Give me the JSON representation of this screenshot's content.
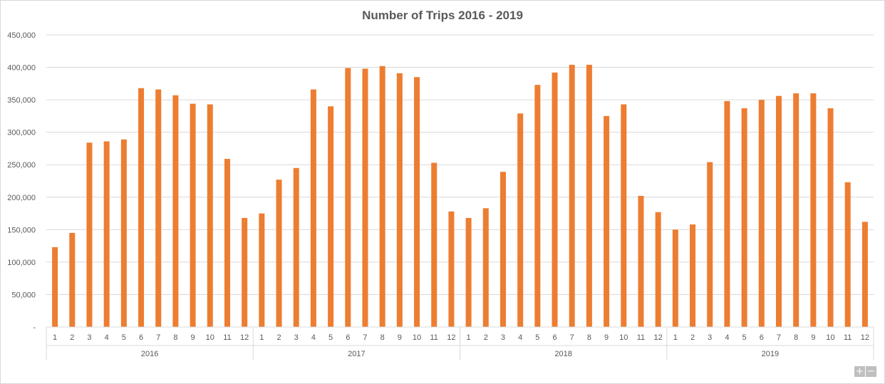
{
  "chart_data": {
    "type": "bar",
    "title": "Number of Trips 2016 - 2019",
    "xlabel": "",
    "ylabel": "",
    "ylim": [
      0,
      450000
    ],
    "y_ticks": [
      "-",
      "50,000",
      "100,000",
      "150,000",
      "200,000",
      "250,000",
      "300,000",
      "350,000",
      "400,000",
      "450,000"
    ],
    "groups": [
      {
        "label": "2016",
        "categories": [
          "1",
          "2",
          "3",
          "4",
          "5",
          "6",
          "7",
          "8",
          "9",
          "10",
          "11",
          "12"
        ],
        "values": [
          123000,
          145000,
          284000,
          286000,
          289000,
          368000,
          366000,
          357000,
          344000,
          343000,
          259000,
          168000
        ]
      },
      {
        "label": "2017",
        "categories": [
          "1",
          "2",
          "3",
          "4",
          "5",
          "6",
          "7",
          "8",
          "9",
          "10",
          "11",
          "12"
        ],
        "values": [
          175000,
          227000,
          245000,
          366000,
          340000,
          399000,
          398000,
          402000,
          391000,
          385000,
          253000,
          178000
        ]
      },
      {
        "label": "2018",
        "categories": [
          "1",
          "2",
          "3",
          "4",
          "5",
          "6",
          "7",
          "8",
          "9",
          "10",
          "11",
          "12"
        ],
        "values": [
          168000,
          183000,
          239000,
          329000,
          373000,
          392000,
          404000,
          404000,
          325000,
          343000,
          202000,
          177000
        ]
      },
      {
        "label": "2019",
        "categories": [
          "1",
          "2",
          "3",
          "4",
          "5",
          "6",
          "7",
          "8",
          "9",
          "10",
          "11",
          "12"
        ],
        "values": [
          150000,
          158000,
          254000,
          348000,
          337000,
          350000,
          356000,
          360000,
          360000,
          337000,
          223000,
          162000
        ]
      }
    ],
    "bar_color": "#ed7d31",
    "grid": true,
    "legend": "none"
  },
  "controls": {
    "zoom_in": "+",
    "zoom_out": "−"
  }
}
